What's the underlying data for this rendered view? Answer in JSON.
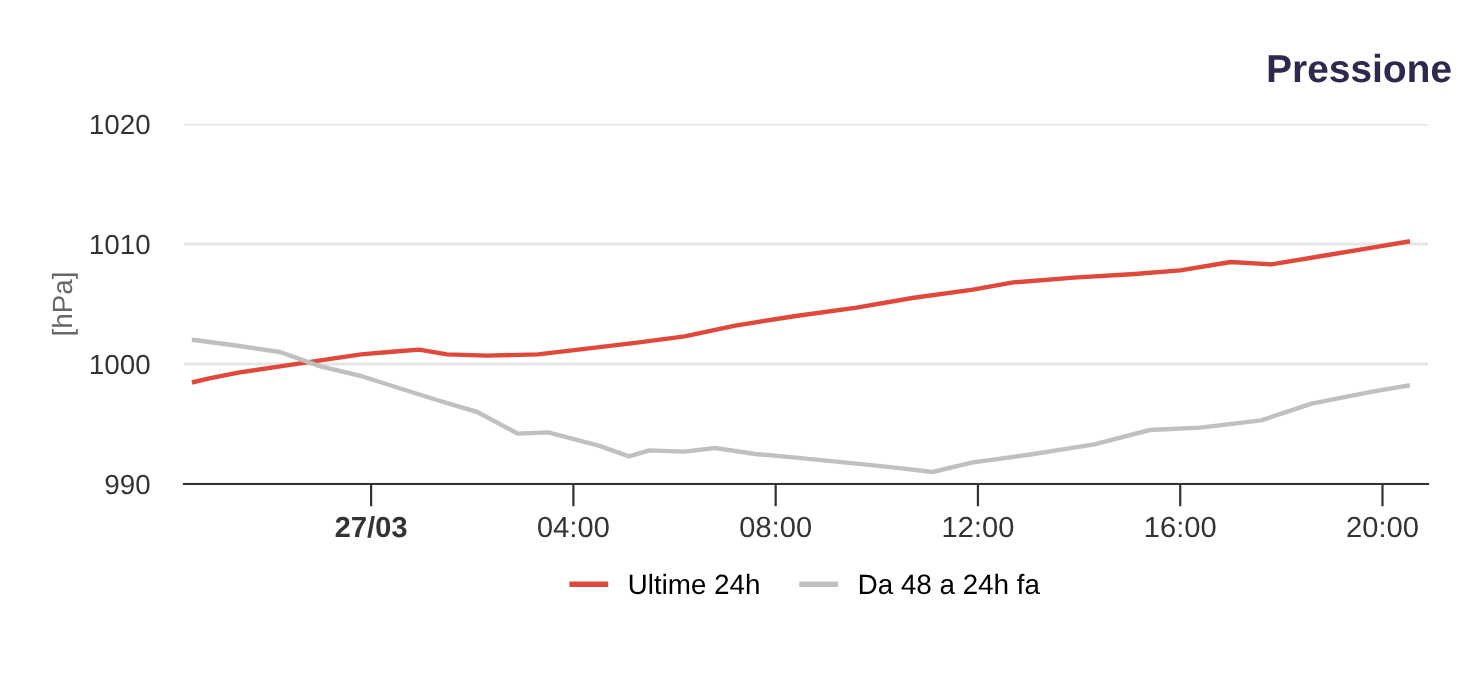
{
  "chart_data": {
    "type": "line",
    "title": "Pressione",
    "ylabel": "[hPa]",
    "xlim": [
      -3.7,
      20.9
    ],
    "xticks": [
      {
        "value": 0,
        "label": "27/03"
      },
      {
        "value": 4,
        "label": "04:00"
      },
      {
        "value": 8,
        "label": "08:00"
      },
      {
        "value": 12,
        "label": "12:00"
      },
      {
        "value": 16,
        "label": "16:00"
      },
      {
        "value": 20,
        "label": "20:00"
      }
    ],
    "ylim": [
      990,
      1020
    ],
    "yticks": [
      990,
      1000,
      1010,
      1020
    ],
    "grid": "y",
    "legend": "bottom",
    "marker": "none",
    "line_style": "solid",
    "series": [
      {
        "name": "Ultime 24h",
        "color": "#e0483a",
        "x": [
          -3.5,
          -3.2,
          -2.6,
          -1.8,
          -1.0,
          -0.2,
          0.35,
          0.95,
          1.5,
          2.3,
          3.3,
          4.1,
          5.3,
          6.2,
          7.2,
          8.4,
          9.6,
          10.7,
          11.9,
          12.7,
          13.9,
          15.1,
          16.0,
          17.0,
          17.8,
          18.8,
          19.8,
          20.5
        ],
        "values": [
          998.5,
          998.8,
          999.3,
          999.8,
          1000.3,
          1000.8,
          1001.0,
          1001.2,
          1000.8,
          1000.7,
          1000.8,
          1001.2,
          1001.8,
          1002.3,
          1003.2,
          1004.0,
          1004.7,
          1005.5,
          1006.2,
          1006.8,
          1007.2,
          1007.5,
          1007.8,
          1008.5,
          1008.3,
          1009.0,
          1009.7,
          1010.2
        ]
      },
      {
        "name": "Da 48 a 24h fa",
        "color": "#c0c0c0",
        "x": [
          -3.5,
          -2.6,
          -1.8,
          -1.0,
          -0.2,
          0.55,
          1.3,
          2.1,
          2.9,
          3.5,
          4.5,
          5.1,
          5.5,
          6.2,
          6.8,
          7.6,
          8.4,
          9.6,
          10.5,
          11.1,
          11.9,
          13.1,
          14.3,
          15.4,
          16.4,
          17.6,
          18.6,
          19.8,
          20.5
        ],
        "values": [
          1002.0,
          1001.5,
          1001.0,
          999.8,
          999.0,
          998.0,
          997.0,
          996.0,
          994.2,
          994.3,
          993.2,
          992.3,
          992.8,
          992.7,
          993.0,
          992.5,
          992.2,
          991.7,
          991.3,
          991.0,
          991.8,
          992.5,
          993.3,
          994.5,
          994.7,
          995.3,
          996.7,
          997.7,
          998.2
        ]
      }
    ]
  }
}
